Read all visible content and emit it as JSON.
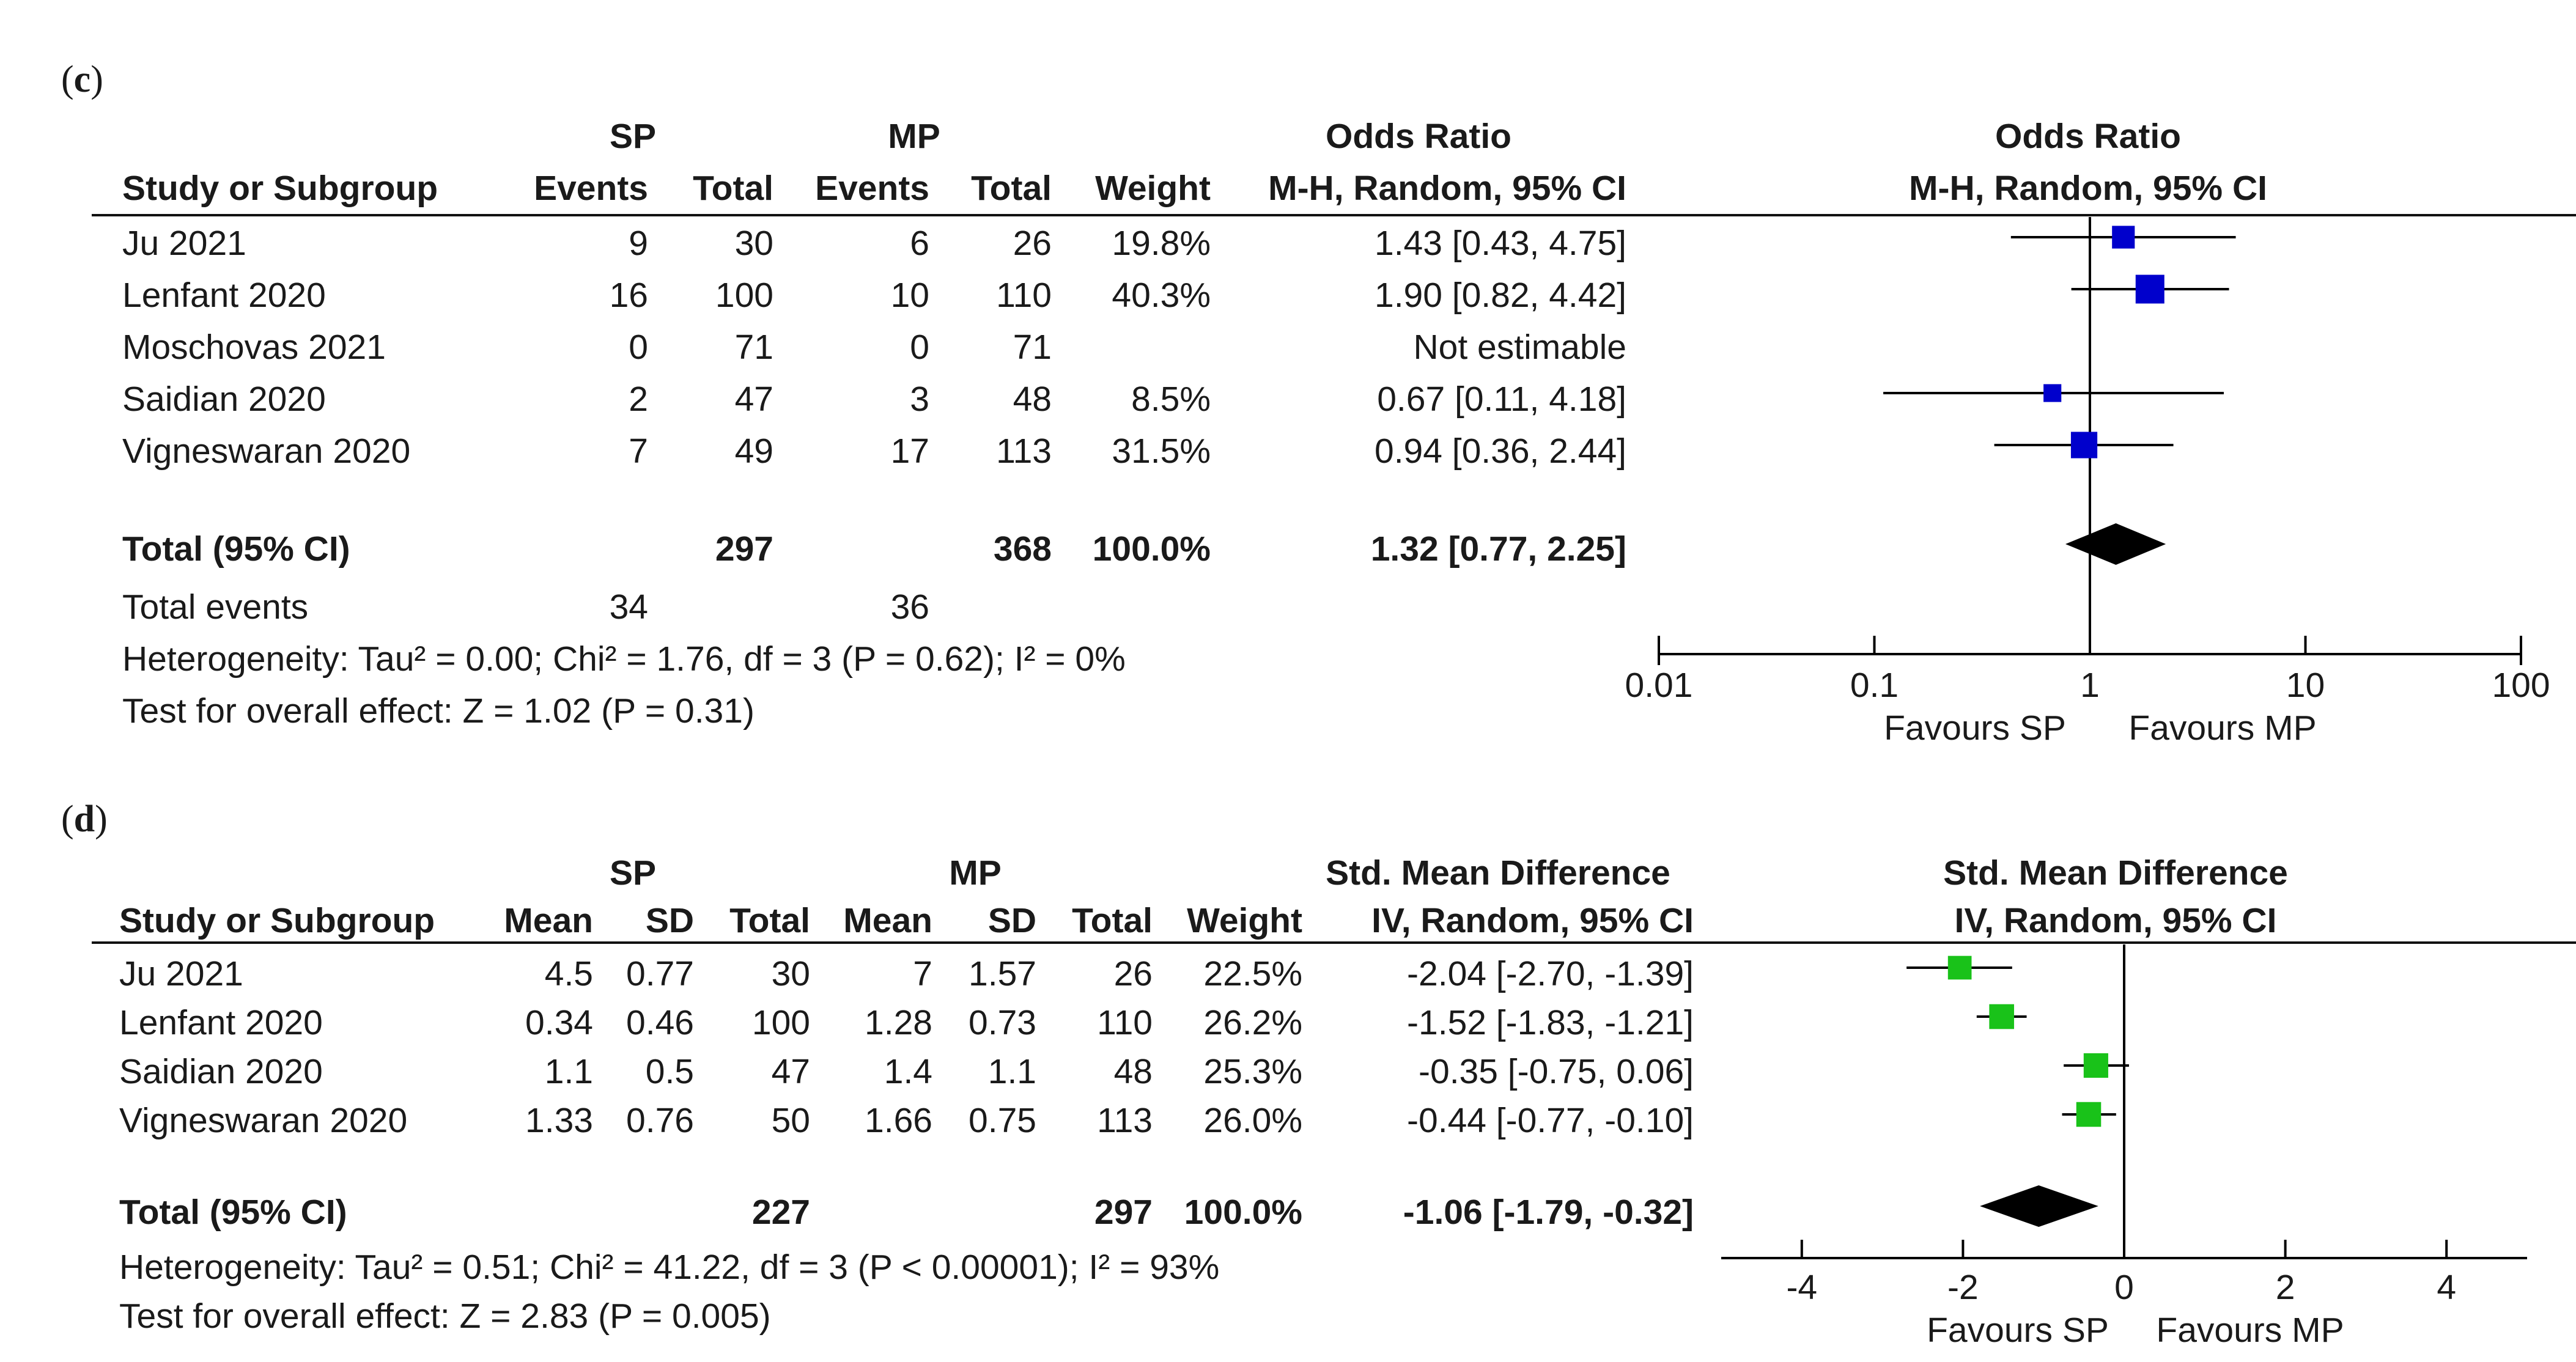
{
  "panel_c": {
    "label_open": "(",
    "label_letter": "c",
    "label_close": ")",
    "group1": "SP",
    "group2": "MP",
    "col_study": "Study or Subgroup",
    "col_events": "Events",
    "col_total": "Total",
    "col_weight": "Weight",
    "effect_title": "Odds Ratio",
    "effect_method": "M-H, Random, 95% CI",
    "plot_title": "Odds Ratio",
    "plot_method": "M-H, Random, 95% CI",
    "rows": [
      {
        "study": "Ju 2021",
        "e1": "9",
        "n1": "30",
        "e2": "6",
        "n2": "26",
        "weight": "19.8%",
        "ci": "1.43 [0.43, 4.75]"
      },
      {
        "study": "Lenfant 2020",
        "e1": "16",
        "n1": "100",
        "e2": "10",
        "n2": "110",
        "weight": "40.3%",
        "ci": "1.90 [0.82, 4.42]"
      },
      {
        "study": "Moschovas 2021",
        "e1": "0",
        "n1": "71",
        "e2": "0",
        "n2": "71",
        "weight": "",
        "ci": "Not estimable"
      },
      {
        "study": "Saidian 2020",
        "e1": "2",
        "n1": "47",
        "e2": "3",
        "n2": "48",
        "weight": "8.5%",
        "ci": "0.67 [0.11, 4.18]"
      },
      {
        "study": "Vigneswaran 2020",
        "e1": "7",
        "n1": "49",
        "e2": "17",
        "n2": "113",
        "weight": "31.5%",
        "ci": "0.94 [0.36, 2.44]"
      }
    ],
    "total": {
      "label": "Total (95% CI)",
      "n1": "297",
      "n2": "368",
      "weight": "100.0%",
      "ci": "1.32 [0.77, 2.25]"
    },
    "events": {
      "label": "Total events",
      "e1": "34",
      "e2": "36"
    },
    "heterogeneity": "Heterogeneity: Tau² = 0.00; Chi² = 1.76, df = 3 (P = 0.62); I² = 0%",
    "overall": "Test for overall effect: Z = 1.02 (P = 0.31)",
    "axis_ticks": [
      "0.01",
      "0.1",
      "1",
      "10",
      "100"
    ],
    "favours_left": "Favours SP",
    "favours_right": "Favours MP"
  },
  "panel_d": {
    "label_open": "(",
    "label_letter": "d",
    "label_close": ")",
    "group1": "SP",
    "group2": "MP",
    "col_study": "Study or Subgroup",
    "col_mean": "Mean",
    "col_sd": "SD",
    "col_total": "Total",
    "col_weight": "Weight",
    "effect_title": "Std. Mean Difference",
    "effect_method": "IV, Random, 95% CI",
    "plot_title": "Std. Mean Difference",
    "plot_method": "IV, Random, 95% CI",
    "rows": [
      {
        "study": "Ju 2021",
        "m1": "4.5",
        "s1": "0.77",
        "n1": "30",
        "m2": "7",
        "s2": "1.57",
        "n2": "26",
        "weight": "22.5%",
        "ci": "-2.04 [-2.70, -1.39]"
      },
      {
        "study": "Lenfant 2020",
        "m1": "0.34",
        "s1": "0.46",
        "n1": "100",
        "m2": "1.28",
        "s2": "0.73",
        "n2": "110",
        "weight": "26.2%",
        "ci": "-1.52 [-1.83, -1.21]"
      },
      {
        "study": "Saidian 2020",
        "m1": "1.1",
        "s1": "0.5",
        "n1": "47",
        "m2": "1.4",
        "s2": "1.1",
        "n2": "48",
        "weight": "25.3%",
        "ci": "-0.35 [-0.75, 0.06]"
      },
      {
        "study": "Vigneswaran 2020",
        "m1": "1.33",
        "s1": "0.76",
        "n1": "50",
        "m2": "1.66",
        "s2": "0.75",
        "n2": "113",
        "weight": "26.0%",
        "ci": "-0.44 [-0.77, -0.10]"
      }
    ],
    "total": {
      "label": "Total (95% CI)",
      "n1": "227",
      "n2": "297",
      "weight": "100.0%",
      "ci": "-1.06 [-1.79, -0.32]"
    },
    "heterogeneity": "Heterogeneity: Tau² = 0.51; Chi² = 41.22, df = 3 (P < 0.00001); I² = 93%",
    "overall": "Test for overall effect: Z = 2.83 (P = 0.005)",
    "axis_ticks": [
      "-4",
      "-2",
      "0",
      "2",
      "4"
    ],
    "favours_left": "Favours SP",
    "favours_right": "Favours MP"
  },
  "colors": {
    "or_marker": "#0000cc",
    "smd_marker": "#19c219",
    "line": "#000000"
  },
  "chart_data": [
    {
      "type": "forest",
      "title": "Odds Ratio",
      "xlabel": "",
      "xscale": "log",
      "xlim": [
        0.01,
        100
      ],
      "null_value": 1,
      "studies": [
        {
          "name": "Ju 2021",
          "estimate": 1.43,
          "lower": 0.43,
          "upper": 4.75,
          "weight": 19.8
        },
        {
          "name": "Lenfant 2020",
          "estimate": 1.9,
          "lower": 0.82,
          "upper": 4.42,
          "weight": 40.3
        },
        {
          "name": "Moschovas 2021",
          "estimate": null,
          "lower": null,
          "upper": null,
          "weight": null
        },
        {
          "name": "Saidian 2020",
          "estimate": 0.67,
          "lower": 0.11,
          "upper": 4.18,
          "weight": 8.5
        },
        {
          "name": "Vigneswaran 2020",
          "estimate": 0.94,
          "lower": 0.36,
          "upper": 2.44,
          "weight": 31.5
        }
      ],
      "pooled": {
        "estimate": 1.32,
        "lower": 0.77,
        "upper": 2.25
      }
    },
    {
      "type": "forest",
      "title": "Std. Mean Difference",
      "xlabel": "",
      "xscale": "linear",
      "xlim": [
        -5,
        5
      ],
      "null_value": 0,
      "studies": [
        {
          "name": "Ju 2021",
          "estimate": -2.04,
          "lower": -2.7,
          "upper": -1.39,
          "weight": 22.5
        },
        {
          "name": "Lenfant 2020",
          "estimate": -1.52,
          "lower": -1.83,
          "upper": -1.21,
          "weight": 26.2
        },
        {
          "name": "Saidian 2020",
          "estimate": -0.35,
          "lower": -0.75,
          "upper": 0.06,
          "weight": 25.3
        },
        {
          "name": "Vigneswaran 2020",
          "estimate": -0.44,
          "lower": -0.77,
          "upper": -0.1,
          "weight": 26.0
        }
      ],
      "pooled": {
        "estimate": -1.06,
        "lower": -1.79,
        "upper": -0.32
      }
    }
  ]
}
